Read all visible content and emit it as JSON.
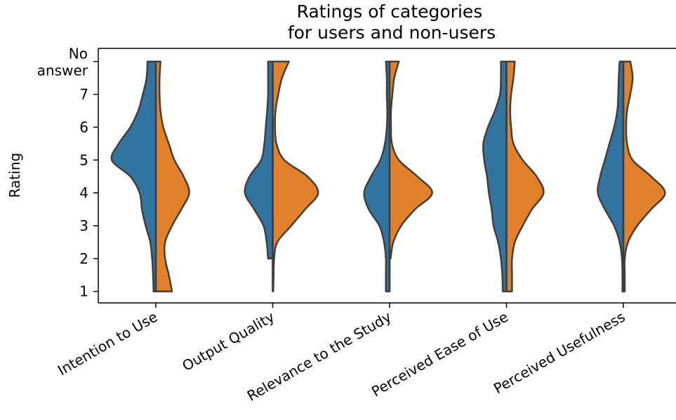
{
  "chart_data": {
    "type": "violin",
    "split": true,
    "title_lines": [
      "Ratings of categories",
      "for users and non-users"
    ],
    "ylabel": "Rating",
    "y_ticks": [
      {
        "value": 1,
        "label": "1"
      },
      {
        "value": 2,
        "label": "2"
      },
      {
        "value": 3,
        "label": "3"
      },
      {
        "value": 4,
        "label": "4"
      },
      {
        "value": 5,
        "label": "5"
      },
      {
        "value": 6,
        "label": "6"
      },
      {
        "value": 7,
        "label": "7"
      },
      {
        "value": 8,
        "label_lines": [
          "No",
          "answer"
        ]
      }
    ],
    "ylim": [
      0.65,
      8.4
    ],
    "categories": [
      "Intention to Use",
      "Output Quality",
      "Relevance to the Study",
      "Perceived Ease of Use",
      "Perceived Usefulness"
    ],
    "colors": {
      "left": "#3274a1",
      "right": "#e1812c",
      "outline": "#3f3f3f"
    },
    "violins": [
      {
        "left": {
          "range": [
            1,
            8
          ],
          "profile": [
            [
              1,
              0.05
            ],
            [
              1.5,
              0.06
            ],
            [
              2,
              0.08
            ],
            [
              2.5,
              0.12
            ],
            [
              3,
              0.22
            ],
            [
              3.5,
              0.3
            ],
            [
              4,
              0.35
            ],
            [
              4.5,
              0.55
            ],
            [
              5,
              0.95
            ],
            [
              5.5,
              0.8
            ],
            [
              6,
              0.55
            ],
            [
              6.5,
              0.38
            ],
            [
              7,
              0.28
            ],
            [
              7.5,
              0.2
            ],
            [
              8,
              0.18
            ]
          ]
        },
        "right": {
          "range": [
            1,
            8
          ],
          "profile": [
            [
              1,
              0.35
            ],
            [
              1.5,
              0.28
            ],
            [
              2,
              0.2
            ],
            [
              2.5,
              0.2
            ],
            [
              3,
              0.35
            ],
            [
              3.5,
              0.55
            ],
            [
              4,
              0.72
            ],
            [
              4.5,
              0.6
            ],
            [
              5,
              0.4
            ],
            [
              5.5,
              0.28
            ],
            [
              6,
              0.16
            ],
            [
              6.5,
              0.1
            ],
            [
              7,
              0.08
            ],
            [
              7.5,
              0.08
            ],
            [
              8,
              0.1
            ]
          ]
        }
      },
      {
        "left": {
          "range": [
            2,
            8
          ],
          "profile": [
            [
              2,
              0.1
            ],
            [
              2.5,
              0.13
            ],
            [
              3,
              0.2
            ],
            [
              3.5,
              0.4
            ],
            [
              4,
              0.6
            ],
            [
              4.5,
              0.5
            ],
            [
              5,
              0.25
            ],
            [
              5.5,
              0.18
            ],
            [
              6,
              0.15
            ],
            [
              6.5,
              0.12
            ],
            [
              7,
              0.1
            ],
            [
              7.5,
              0.1
            ],
            [
              8,
              0.1
            ]
          ]
        },
        "right": {
          "range": [
            1,
            8
          ],
          "profile": [
            [
              1,
              0.01
            ],
            [
              1.5,
              0.02
            ],
            [
              2,
              0.03
            ],
            [
              2.5,
              0.1
            ],
            [
              3,
              0.4
            ],
            [
              3.5,
              0.7
            ],
            [
              4,
              0.98
            ],
            [
              4.5,
              0.75
            ],
            [
              5,
              0.25
            ],
            [
              5.5,
              0.08
            ],
            [
              6,
              0.05
            ],
            [
              6.5,
              0.06
            ],
            [
              7,
              0.12
            ],
            [
              7.5,
              0.2
            ],
            [
              8,
              0.35
            ]
          ]
        }
      },
      {
        "left": {
          "range": [
            1,
            8
          ],
          "profile": [
            [
              1,
              0.08
            ],
            [
              1.5,
              0.08
            ],
            [
              2,
              0.08
            ],
            [
              2.5,
              0.12
            ],
            [
              3,
              0.22
            ],
            [
              3.5,
              0.45
            ],
            [
              4,
              0.55
            ],
            [
              4.5,
              0.4
            ],
            [
              5,
              0.2
            ],
            [
              5.5,
              0.1
            ],
            [
              6,
              0.06
            ],
            [
              6.5,
              0.05
            ],
            [
              7,
              0.06
            ],
            [
              7.5,
              0.06
            ],
            [
              8,
              0.08
            ]
          ]
        },
        "right": {
          "range": [
            2,
            8
          ],
          "profile": [
            [
              2,
              0.02
            ],
            [
              2.5,
              0.08
            ],
            [
              3,
              0.25
            ],
            [
              3.5,
              0.55
            ],
            [
              4,
              0.92
            ],
            [
              4.5,
              0.6
            ],
            [
              5,
              0.2
            ],
            [
              5.5,
              0.05
            ],
            [
              6,
              0.03
            ],
            [
              6.5,
              0.03
            ],
            [
              7,
              0.06
            ],
            [
              7.5,
              0.1
            ],
            [
              8,
              0.2
            ]
          ]
        }
      },
      {
        "left": {
          "range": [
            1,
            8
          ],
          "profile": [
            [
              1,
              0.08
            ],
            [
              1.5,
              0.09
            ],
            [
              2,
              0.12
            ],
            [
              2.5,
              0.18
            ],
            [
              3,
              0.28
            ],
            [
              3.5,
              0.32
            ],
            [
              4,
              0.38
            ],
            [
              4.5,
              0.42
            ],
            [
              5,
              0.48
            ],
            [
              5.5,
              0.5
            ],
            [
              6,
              0.4
            ],
            [
              6.5,
              0.25
            ],
            [
              7,
              0.14
            ],
            [
              7.5,
              0.12
            ],
            [
              8,
              0.12
            ]
          ]
        },
        "right": {
          "range": [
            1,
            8
          ],
          "profile": [
            [
              1,
              0.12
            ],
            [
              1.5,
              0.12
            ],
            [
              2,
              0.12
            ],
            [
              2.5,
              0.18
            ],
            [
              3,
              0.35
            ],
            [
              3.5,
              0.55
            ],
            [
              4,
              0.8
            ],
            [
              4.5,
              0.65
            ],
            [
              5,
              0.35
            ],
            [
              5.5,
              0.15
            ],
            [
              6,
              0.1
            ],
            [
              6.5,
              0.08
            ],
            [
              7,
              0.1
            ],
            [
              7.5,
              0.15
            ],
            [
              8,
              0.18
            ]
          ]
        }
      },
      {
        "left": {
          "range": [
            1,
            8
          ],
          "profile": [
            [
              1,
              0.02
            ],
            [
              1.5,
              0.02
            ],
            [
              2,
              0.03
            ],
            [
              2.5,
              0.08
            ],
            [
              3,
              0.2
            ],
            [
              3.5,
              0.4
            ],
            [
              4,
              0.55
            ],
            [
              4.5,
              0.5
            ],
            [
              5,
              0.4
            ],
            [
              5.5,
              0.3
            ],
            [
              6,
              0.2
            ],
            [
              6.5,
              0.13
            ],
            [
              7,
              0.11
            ],
            [
              7.5,
              0.1
            ],
            [
              8,
              0.08
            ]
          ]
        },
        "right": {
          "range": [
            1,
            8
          ],
          "profile": [
            [
              1,
              0.03
            ],
            [
              1.5,
              0.03
            ],
            [
              2,
              0.03
            ],
            [
              2.5,
              0.1
            ],
            [
              3,
              0.3
            ],
            [
              3.5,
              0.6
            ],
            [
              4,
              0.9
            ],
            [
              4.5,
              0.6
            ],
            [
              5,
              0.2
            ],
            [
              5.5,
              0.08
            ],
            [
              6,
              0.06
            ],
            [
              6.5,
              0.08
            ],
            [
              7,
              0.15
            ],
            [
              7.5,
              0.2
            ],
            [
              8,
              0.15
            ]
          ]
        }
      }
    ]
  }
}
